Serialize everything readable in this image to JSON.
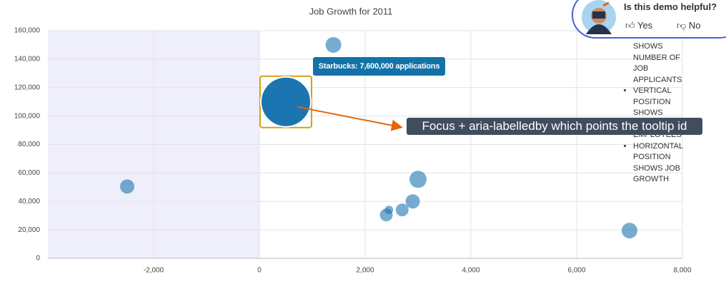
{
  "chart_data": {
    "type": "bubble",
    "title": "Job Growth for 2011",
    "x": [
      -2500,
      1400,
      500,
      2400,
      2450,
      2700,
      2900,
      3000,
      7000
    ],
    "values": [
      50500,
      150000,
      110000,
      30500,
      34000,
      34000,
      40000,
      55500,
      19500
    ],
    "sizes": [
      620000,
      750000,
      7600000,
      500000,
      220000,
      500000,
      620000,
      890000,
      750000
    ],
    "color": "#1a75b0",
    "xlim": [
      -4000,
      8000
    ],
    "xticks": [
      {
        "value": -2000,
        "label": "-2,000"
      },
      0,
      {
        "value": 2000,
        "label": "2,000"
      },
      {
        "value": 4000,
        "label": "4,000"
      },
      {
        "value": 6000,
        "label": "6,000"
      },
      {
        "value": 8000,
        "label": "8,000"
      }
    ],
    "ylim": [
      0,
      160000
    ],
    "yticks": [
      0,
      {
        "value": 20000,
        "label": "20,000"
      },
      {
        "value": 40000,
        "label": "40,000"
      },
      {
        "value": 60000,
        "label": "60,000"
      },
      {
        "value": 80000,
        "label": "80,000"
      },
      {
        "value": 100000,
        "label": "100,000"
      },
      {
        "value": 120000,
        "label": "120,000"
      },
      {
        "value": 140000,
        "label": "140,000"
      },
      {
        "value": 160000,
        "label": "160,000"
      }
    ],
    "shaded_band": [
      -4000,
      0
    ],
    "grid": true
  },
  "tooltip": "Starbucks: 7,600,000 applications",
  "annotation": "Focus + aria-labelledby which points the tooltip id",
  "description": [
    "SHOWS NUMBER OF JOB APPLICANTS",
    "VERTICAL POSITION SHOWS NUMBER OF EMPLOYEES",
    "HORIZONTAL POSITION SHOWS JOB GROWTH"
  ],
  "feedback": {
    "question": "Is this demo helpful?",
    "yes": "Yes",
    "no": "No"
  }
}
